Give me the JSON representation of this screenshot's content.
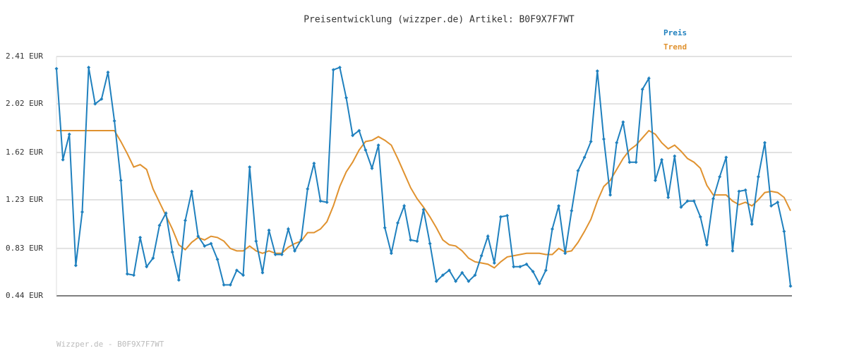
{
  "chart_data": {
    "type": "line",
    "title": "Preisentwicklung (wizzper.de) Artikel: B0F9X7F7WT",
    "footer": "Wizzper.de - B0F9X7F7WT",
    "ylim": [
      0.44,
      2.41
    ],
    "yticks": [
      {
        "value": 0.44,
        "label": "0.44 EUR"
      },
      {
        "value": 0.83,
        "label": "0.83 EUR"
      },
      {
        "value": 1.23,
        "label": "1.23 EUR"
      },
      {
        "value": 1.62,
        "label": "1.62 EUR"
      },
      {
        "value": 2.02,
        "label": "2.02 EUR"
      },
      {
        "value": 2.41,
        "label": "2.41 EUR"
      }
    ],
    "grid": true,
    "series": [
      {
        "name": "Preis",
        "color": "#1f80be",
        "values": [
          2.31,
          1.56,
          1.77,
          0.69,
          1.13,
          2.32,
          2.02,
          2.06,
          2.28,
          1.88,
          1.39,
          0.62,
          0.61,
          0.92,
          0.68,
          0.75,
          1.02,
          1.12,
          0.8,
          0.57,
          1.06,
          1.3,
          0.93,
          0.85,
          0.87,
          0.74,
          0.53,
          0.53,
          0.65,
          0.61,
          1.5,
          0.89,
          0.63,
          0.98,
          0.78,
          0.78,
          0.99,
          0.81,
          0.9,
          1.32,
          1.53,
          1.22,
          1.21,
          2.3,
          2.32,
          2.07,
          1.76,
          1.8,
          1.64,
          1.49,
          1.68,
          1.0,
          0.79,
          1.04,
          1.18,
          0.9,
          0.89,
          1.15,
          0.87,
          0.56,
          0.61,
          0.65,
          0.56,
          0.63,
          0.56,
          0.61,
          0.77,
          0.93,
          0.71,
          1.09,
          1.1,
          0.68,
          0.68,
          0.7,
          0.64,
          0.54,
          0.65,
          0.99,
          1.18,
          0.79,
          1.14,
          1.47,
          1.58,
          1.71,
          2.29,
          1.73,
          1.27,
          1.7,
          1.87,
          1.54,
          1.54,
          2.14,
          2.23,
          1.39,
          1.56,
          1.25,
          1.59,
          1.17,
          1.22,
          1.22,
          1.09,
          0.86,
          1.24,
          1.42,
          1.58,
          0.81,
          1.3,
          1.31,
          1.03,
          1.42,
          1.7,
          1.18,
          1.21,
          0.97,
          0.52
        ]
      },
      {
        "name": "Trend",
        "color": "#e0922f",
        "values": [
          1.8,
          1.8,
          1.8,
          1.8,
          1.8,
          1.8,
          1.8,
          1.8,
          1.8,
          1.8,
          1.71,
          1.61,
          1.5,
          1.52,
          1.48,
          1.32,
          1.21,
          1.1,
          0.99,
          0.86,
          0.82,
          0.88,
          0.92,
          0.9,
          0.93,
          0.92,
          0.89,
          0.83,
          0.81,
          0.81,
          0.85,
          0.81,
          0.79,
          0.81,
          0.79,
          0.79,
          0.84,
          0.87,
          0.89,
          0.96,
          0.96,
          0.99,
          1.05,
          1.18,
          1.34,
          1.46,
          1.54,
          1.64,
          1.71,
          1.72,
          1.75,
          1.72,
          1.68,
          1.57,
          1.45,
          1.33,
          1.24,
          1.17,
          1.09,
          1.0,
          0.9,
          0.86,
          0.85,
          0.81,
          0.75,
          0.72,
          0.71,
          0.7,
          0.67,
          0.72,
          0.76,
          0.77,
          0.78,
          0.79,
          0.79,
          0.79,
          0.78,
          0.78,
          0.83,
          0.8,
          0.81,
          0.88,
          0.97,
          1.07,
          1.22,
          1.34,
          1.39,
          1.48,
          1.57,
          1.64,
          1.68,
          1.74,
          1.8,
          1.77,
          1.7,
          1.65,
          1.68,
          1.63,
          1.57,
          1.54,
          1.49,
          1.35,
          1.27,
          1.27,
          1.27,
          1.22,
          1.19,
          1.21,
          1.18,
          1.23,
          1.29,
          1.3,
          1.29,
          1.25,
          1.14
        ]
      }
    ]
  }
}
